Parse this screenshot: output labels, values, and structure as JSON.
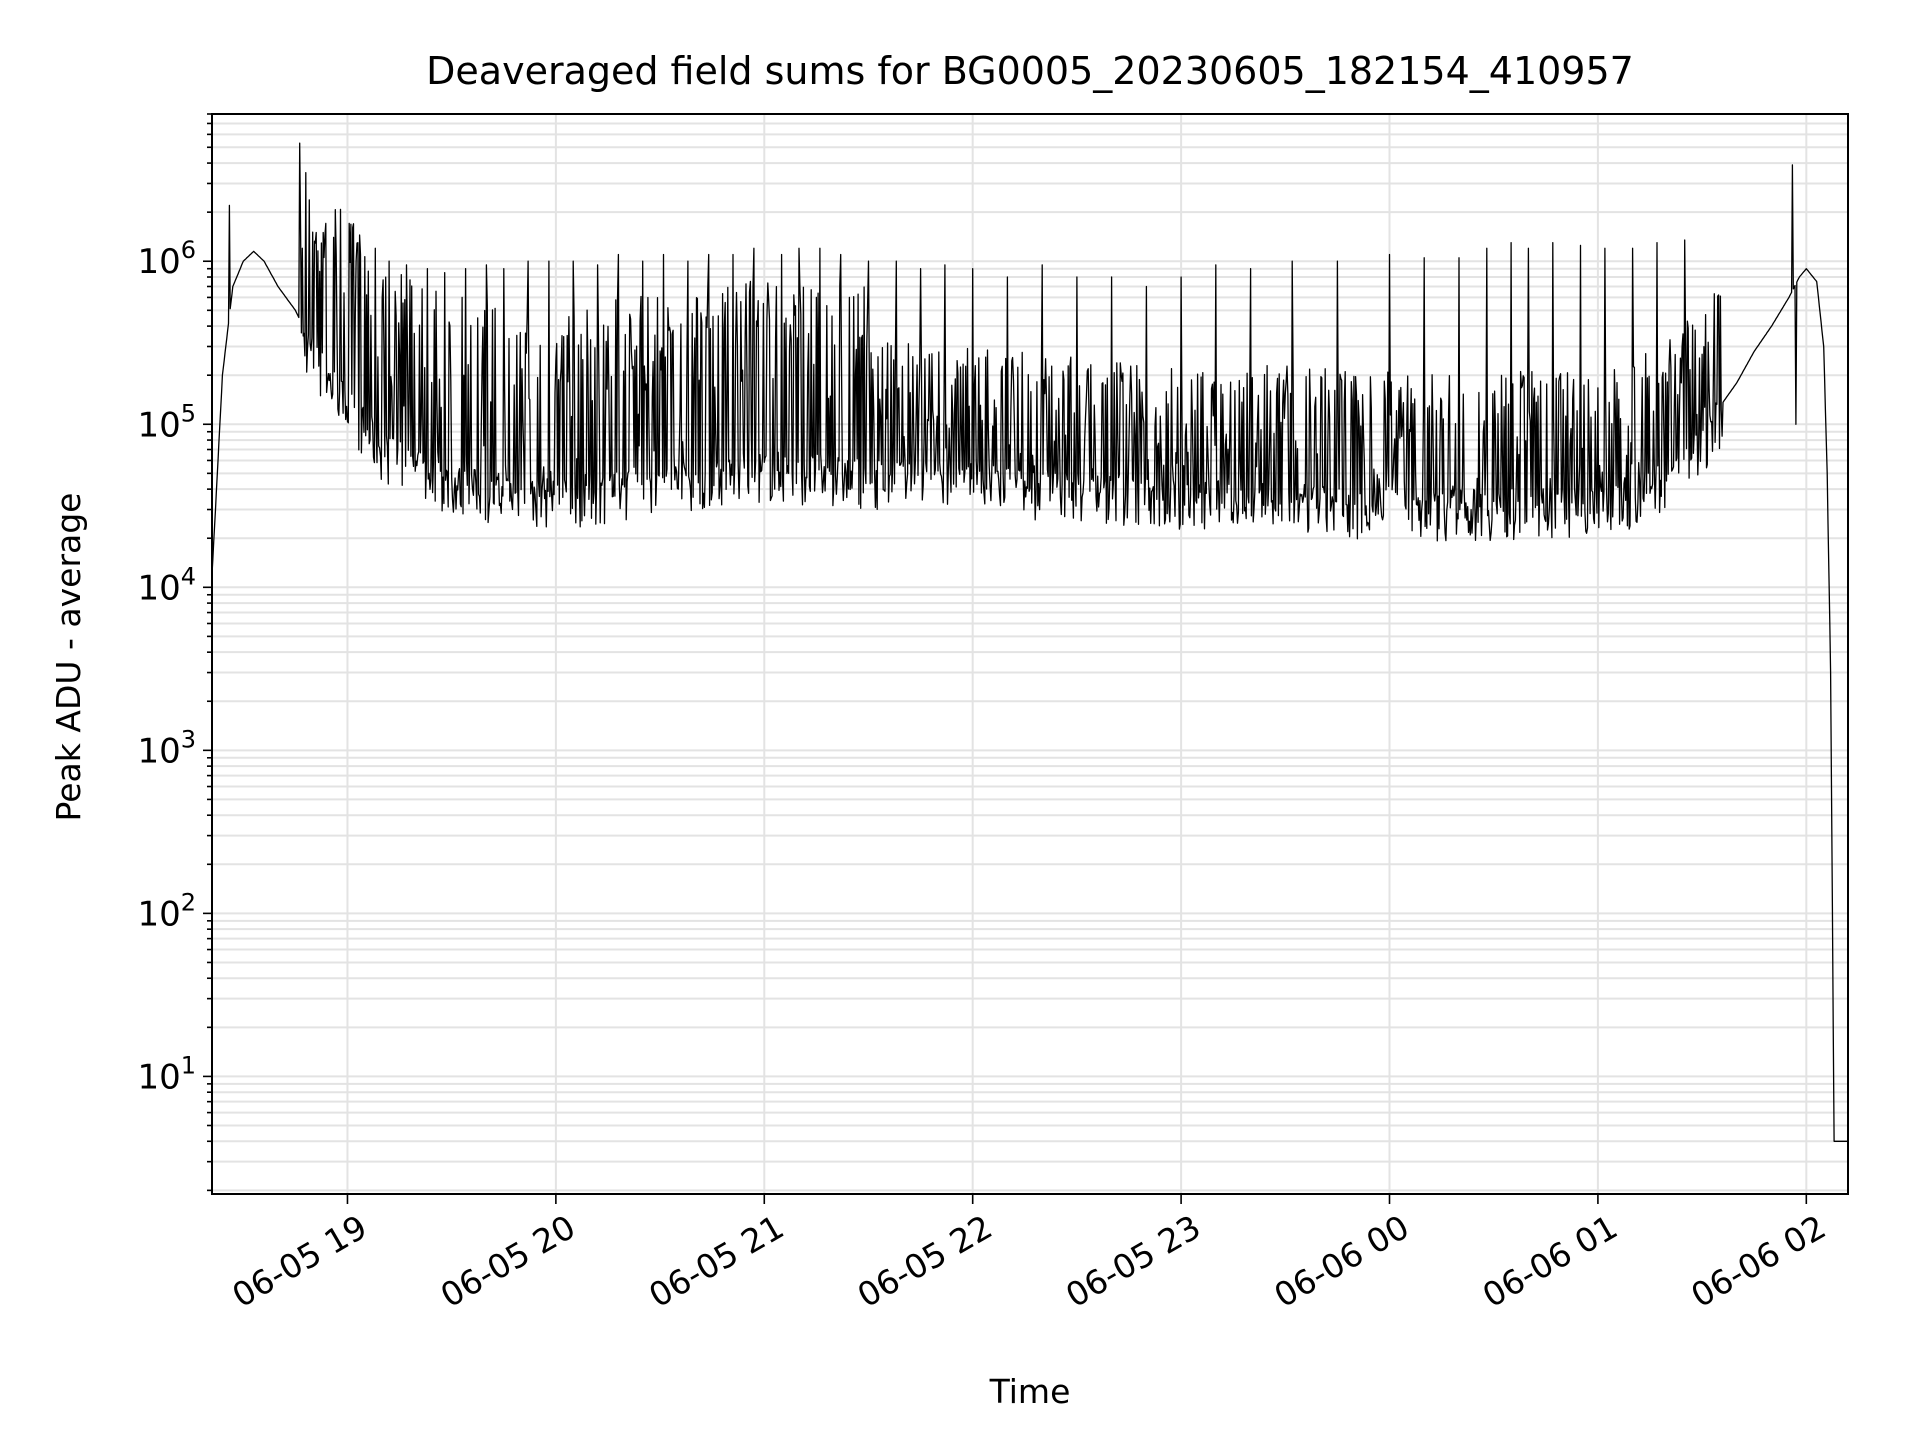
{
  "chart_data": {
    "type": "line",
    "title": "Deaveraged field sums for BG0005_20230605_182154_410957",
    "xlabel": "Time",
    "ylabel": "Peak ADU - average",
    "yscale": "log",
    "grid": true,
    "line_color": "#000000",
    "xlim": [
      "2023-06-05 18:21",
      "2023-06-06 02:12"
    ],
    "ylim": [
      1.9,
      8000000
    ],
    "x_ticks": [
      {
        "t": "2023-06-05 19:00",
        "label": "06-05 19"
      },
      {
        "t": "2023-06-05 20:00",
        "label": "06-05 20"
      },
      {
        "t": "2023-06-05 21:00",
        "label": "06-05 21"
      },
      {
        "t": "2023-06-05 22:00",
        "label": "06-05 22"
      },
      {
        "t": "2023-06-05 23:00",
        "label": "06-05 23"
      },
      {
        "t": "2023-06-06 00:00",
        "label": "06-06 00"
      },
      {
        "t": "2023-06-06 01:00",
        "label": "06-06 01"
      },
      {
        "t": "2023-06-06 02:00",
        "label": "06-06 02"
      }
    ],
    "y_ticks": [
      {
        "value": 10,
        "base": "10",
        "exp": "1"
      },
      {
        "value": 100,
        "base": "10",
        "exp": "2"
      },
      {
        "value": 1000,
        "base": "10",
        "exp": "3"
      },
      {
        "value": 10000,
        "base": "10",
        "exp": "4"
      },
      {
        "value": 100000,
        "base": "10",
        "exp": "5"
      },
      {
        "value": 1000000,
        "base": "10",
        "exp": "6"
      }
    ],
    "series": [
      {
        "baseline": {
          "x": [
            "2023-06-05 18:21",
            "2023-06-05 18:22",
            "2023-06-05 18:24",
            "2023-06-05 18:27",
            "2023-06-05 18:30",
            "2023-06-05 18:33",
            "2023-06-05 18:36",
            "2023-06-05 18:40",
            "2023-06-05 18:45",
            "2023-06-05 18:50",
            "2023-06-05 19:00",
            "2023-06-05 19:10",
            "2023-06-05 19:20",
            "2023-06-05 19:30",
            "2023-06-05 19:40",
            "2023-06-05 20:00",
            "2023-06-05 20:15",
            "2023-06-05 20:30",
            "2023-06-05 20:45",
            "2023-06-05 21:00",
            "2023-06-05 21:30",
            "2023-06-05 22:00",
            "2023-06-05 22:30",
            "2023-06-05 23:00",
            "2023-06-05 23:30",
            "2023-06-06 00:00",
            "2023-06-06 00:30",
            "2023-06-06 01:00",
            "2023-06-06 01:10",
            "2023-06-06 01:20",
            "2023-06-06 01:30",
            "2023-06-06 01:40",
            "2023-06-06 01:45",
            "2023-06-06 01:50",
            "2023-06-06 01:55",
            "2023-06-06 01:58",
            "2023-06-06 02:00",
            "2023-06-06 02:03",
            "2023-06-06 02:05",
            "2023-06-06 02:06",
            "2023-06-06 02:07",
            "2023-06-06 02:08",
            "2023-06-06 02:12"
          ],
          "y": [
            12000,
            30000,
            200000,
            700000,
            1000000,
            1150000,
            1000000,
            700000,
            500000,
            300000,
            150000,
            80000,
            60000,
            50000,
            45000,
            40000,
            45000,
            50000,
            55000,
            60000,
            55000,
            50000,
            45000,
            40000,
            38000,
            35000,
            35000,
            36000,
            42000,
            55000,
            90000,
            180000,
            280000,
            400000,
            600000,
            800000,
            900000,
            750000,
            300000,
            50000,
            3000,
            4,
            4
          ]
        },
        "spikes": {
          "x": [
            "2023-06-05 18:26",
            "2023-06-05 18:47",
            "2023-06-05 18:51",
            "2023-06-05 18:53",
            "2023-06-05 18:56",
            "2023-06-05 19:03",
            "2023-06-05 19:08",
            "2023-06-05 19:12",
            "2023-06-05 19:17",
            "2023-06-05 19:23",
            "2023-06-05 19:28",
            "2023-06-05 19:34",
            "2023-06-05 19:40",
            "2023-06-05 19:45",
            "2023-06-05 19:52",
            "2023-06-05 19:58",
            "2023-06-05 20:05",
            "2023-06-05 20:12",
            "2023-06-05 20:18",
            "2023-06-05 20:25",
            "2023-06-05 20:31",
            "2023-06-05 20:38",
            "2023-06-05 20:44",
            "2023-06-05 20:51",
            "2023-06-05 20:57",
            "2023-06-05 21:05",
            "2023-06-05 21:10",
            "2023-06-05 21:16",
            "2023-06-05 21:22",
            "2023-06-05 21:30",
            "2023-06-05 21:38",
            "2023-06-05 21:45",
            "2023-06-05 21:52",
            "2023-06-05 22:00",
            "2023-06-05 22:10",
            "2023-06-05 22:20",
            "2023-06-05 22:30",
            "2023-06-05 22:40",
            "2023-06-05 22:50",
            "2023-06-05 23:00",
            "2023-06-05 23:10",
            "2023-06-05 23:20",
            "2023-06-05 23:32",
            "2023-06-05 23:45",
            "2023-06-06 00:00",
            "2023-06-06 00:10",
            "2023-06-06 00:20",
            "2023-06-06 00:28",
            "2023-06-06 00:35",
            "2023-06-06 00:40",
            "2023-06-06 00:47",
            "2023-06-06 00:55",
            "2023-06-06 01:02",
            "2023-06-06 01:10",
            "2023-06-06 01:17",
            "2023-06-06 01:25",
            "2023-06-06 01:56",
            "2023-06-06 01:57"
          ],
          "y": [
            2200000,
            1200000,
            1500000,
            1500000,
            1400000,
            1300000,
            1200000,
            1000000,
            950000,
            900000,
            850000,
            900000,
            950000,
            900000,
            1000000,
            1000000,
            1000000,
            950000,
            1100000,
            1000000,
            1100000,
            1000000,
            1100000,
            1100000,
            1200000,
            1100000,
            1200000,
            1200000,
            1100000,
            1000000,
            1000000,
            900000,
            950000,
            900000,
            800000,
            950000,
            800000,
            800000,
            700000,
            800000,
            950000,
            900000,
            1000000,
            1000000,
            1100000,
            1050000,
            1050000,
            1200000,
            1300000,
            1200000,
            1300000,
            1250000,
            1200000,
            1200000,
            1300000,
            1350000,
            3900000,
            100000
          ]
        }
      }
    ]
  }
}
